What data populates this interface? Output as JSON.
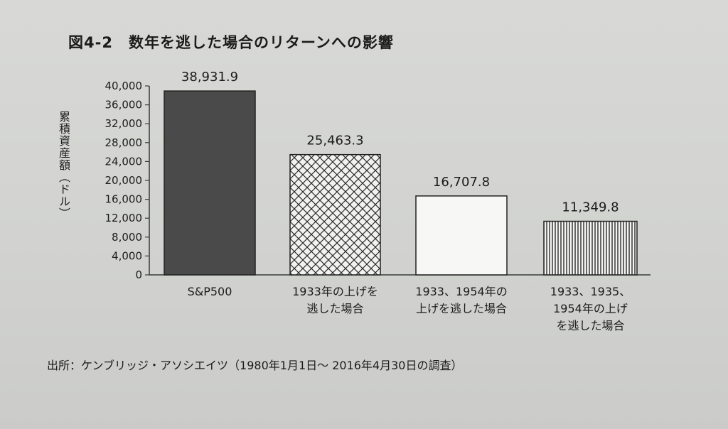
{
  "title": {
    "figure_no": "図4-2",
    "text": "数年を逃した場合のリターンへの影響"
  },
  "source_note": "出所：ケンブリッジ・アソシエイツ（1980年1月1日～ 2016年4月30日の調査）",
  "chart_data": {
    "type": "bar",
    "title": "数年を逃した場合のリターンへの影響",
    "ylabel": "累積資産額（ドル）",
    "xlabel": "",
    "ylim": [
      0,
      40000
    ],
    "yticks": [
      "0",
      "4,000",
      "8,000",
      "12,000",
      "16,000",
      "20,000",
      "24,000",
      "28,000",
      "32,000",
      "36,000",
      "40,000"
    ],
    "grid": false,
    "categories": [
      [
        "S&P500"
      ],
      [
        "1933年の上げを",
        "逃した場合"
      ],
      [
        "1933、1954年の",
        "上げを逃した場合"
      ],
      [
        "1933、1935、",
        "1954年の上げ",
        "を逃した場合"
      ]
    ],
    "values": [
      38931.9,
      25463.3,
      16707.8,
      11349.8
    ],
    "data_labels": [
      "38,931.9",
      "25,463.3",
      "16,707.8",
      "11,349.8"
    ],
    "fills": [
      "solid",
      "crosshatch",
      "empty",
      "vertical-lines"
    ],
    "colors": {
      "bar_dark": "#4a4a4a",
      "hatch": "#2b2b2b",
      "axis": "#3a3a3a"
    }
  }
}
